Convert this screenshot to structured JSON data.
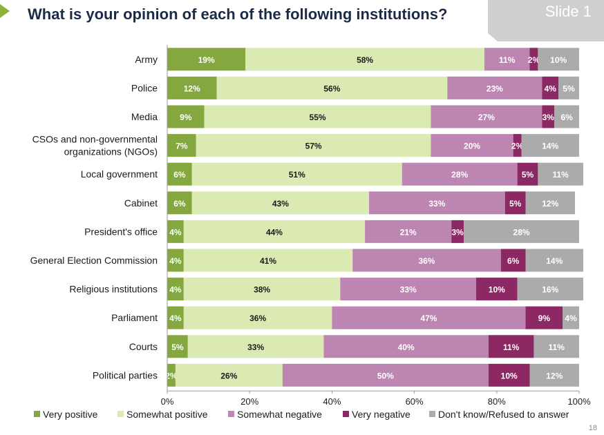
{
  "header": {
    "title": "What is your opinion of each of the following institutions?",
    "slide_label": "Slide 1",
    "page_number": "18"
  },
  "chart_data": {
    "type": "bar",
    "orientation": "horizontal",
    "stacked": true,
    "title": "",
    "xlabel": "",
    "ylabel": "",
    "xlim": [
      0,
      100
    ],
    "x_ticks": [
      "0%",
      "20%",
      "40%",
      "60%",
      "80%",
      "100%"
    ],
    "grid": false,
    "legend_position": "bottom",
    "categories": [
      "Army",
      "Police",
      "Media",
      "CSOs and non-governmental organizations (NGOs)",
      "Local government",
      "Cabinet",
      "President's office",
      "General Election Commission",
      "Religious institutions",
      "Parliament",
      "Courts",
      "Political parties"
    ],
    "series": [
      {
        "name": "Very positive",
        "color": "#84a83f",
        "label_color": "#ffffff",
        "values": [
          19,
          12,
          9,
          7,
          6,
          6,
          4,
          4,
          4,
          4,
          5,
          2
        ]
      },
      {
        "name": "Somewhat positive",
        "color": "#dbe9b3",
        "label_color": "#1a1a1a",
        "values": [
          58,
          56,
          55,
          57,
          51,
          43,
          44,
          41,
          38,
          36,
          33,
          26
        ]
      },
      {
        "name": "Somewhat negative",
        "color": "#bd86b2",
        "label_color": "#ffffff",
        "values": [
          11,
          23,
          27,
          20,
          28,
          33,
          21,
          36,
          33,
          47,
          40,
          50
        ]
      },
      {
        "name": "Very negative",
        "color": "#8c2863",
        "label_color": "#ffffff",
        "values": [
          2,
          4,
          3,
          2,
          5,
          5,
          3,
          6,
          10,
          9,
          11,
          10
        ]
      },
      {
        "name": "Don't know/Refused to answer",
        "color": "#ababab",
        "label_color": "#ffffff",
        "values": [
          10,
          5,
          6,
          14,
          11,
          12,
          28,
          14,
          16,
          4,
          11,
          12
        ]
      }
    ]
  }
}
